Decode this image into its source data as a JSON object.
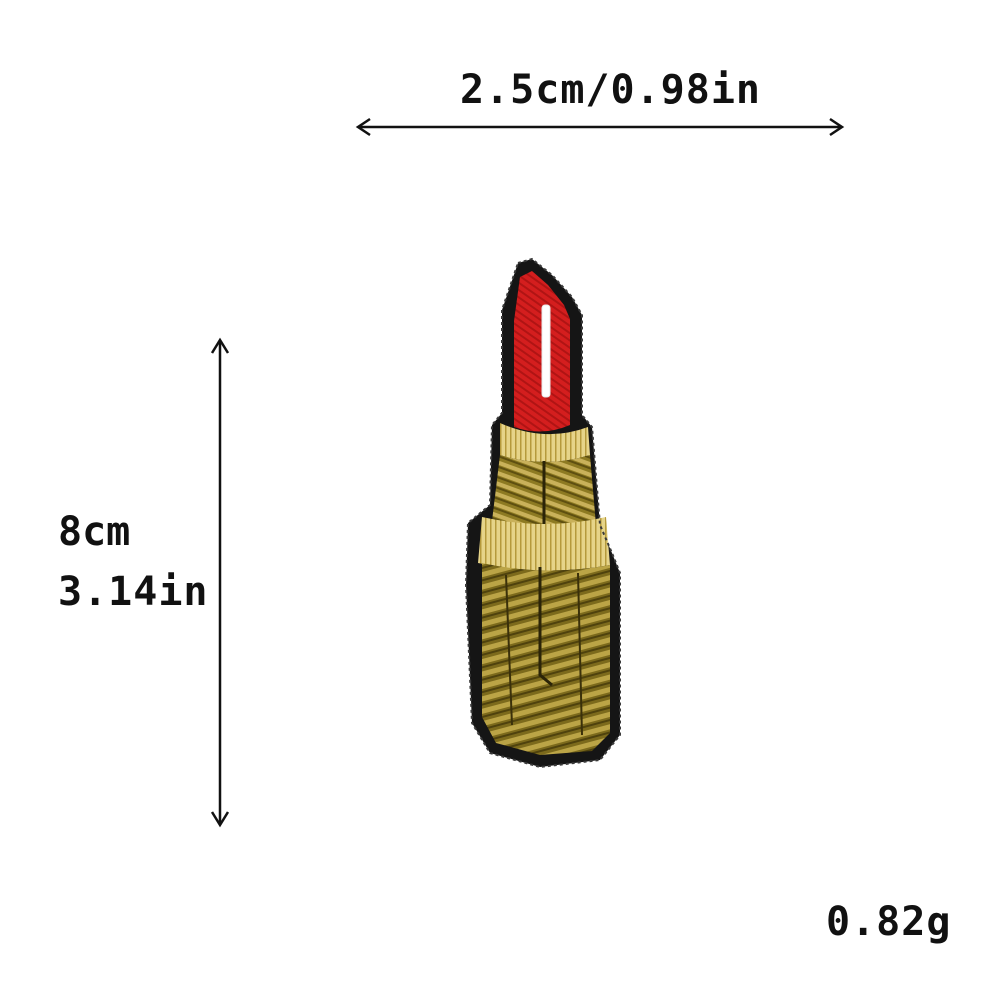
{
  "dimensions": {
    "width_text": "2.5cm/0.98in",
    "height_cm": "8cm",
    "height_in": "3.14in",
    "weight": "0.82g"
  },
  "product": {
    "description_icon": "lipstick-patch",
    "colors": {
      "outline": "#151515",
      "bullet_red": "#d41e1e",
      "highlight": "#ffffff",
      "gold": "#c9b15a",
      "gold_dark": "#6b5a12",
      "gold_light": "#e6d489"
    }
  }
}
